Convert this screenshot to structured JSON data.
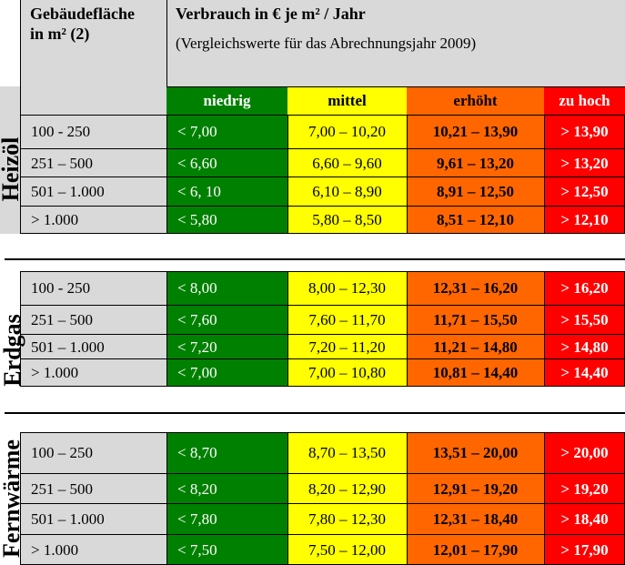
{
  "header": {
    "area_line1": "Gebäudefläche",
    "area_line2": "in m² (2)",
    "consumption_title": "Verbrauch in € je m² / Jahr",
    "consumption_subtitle": "(Vergleichswerte für das Abrechnungsjahr 2009)"
  },
  "categories": [
    "niedrig",
    "mittel",
    "erhöht",
    "zu hoch"
  ],
  "colors": {
    "niedrig": "#008000",
    "mittel": "#ffff00",
    "erhoeht": "#ff6600",
    "zu_hoch": "#ff0000",
    "label_bg": "#d9d9d9"
  },
  "sections": [
    {
      "label": "Heizöl",
      "rows": [
        [
          "100 - 250",
          "< 7,00",
          "7,00 – 10,20",
          "10,21 – 13,90",
          "> 13,90"
        ],
        [
          "251 – 500",
          "< 6,60",
          "6,60 – 9,60",
          "9,61 – 13,20",
          "> 13,20"
        ],
        [
          "501 – 1.000",
          "< 6, 10",
          "6,10 – 8,90",
          "8,91 – 12,50",
          "> 12,50"
        ],
        [
          "> 1.000",
          "< 5,80",
          "5,80 – 8,50",
          "8,51 – 12,10",
          "> 12,10"
        ]
      ]
    },
    {
      "label": "Erdgas",
      "rows": [
        [
          "100 - 250",
          "< 8,00",
          "8,00 – 12,30",
          "12,31 – 16,20",
          "> 16,20"
        ],
        [
          "251 – 500",
          "< 7,60",
          "7,60 – 11,70",
          "11,71 – 15,50",
          "> 15,50"
        ],
        [
          "501 – 1.000",
          "< 7,20",
          "7,20 – 11,20",
          "11,21 – 14,80",
          "> 14,80"
        ],
        [
          "> 1.000",
          "< 7,00",
          "7,00 – 10,80",
          "10,81 – 14,40",
          "> 14,40"
        ]
      ]
    },
    {
      "label": "Fernwärme",
      "rows": [
        [
          "100 – 250",
          "< 8,70",
          "8,70 – 13,50",
          "13,51 – 20,00",
          "> 20,00"
        ],
        [
          "251 – 500",
          "< 8,20",
          "8,20 – 12,90",
          "12,91 – 19,20",
          "> 19,20"
        ],
        [
          "501 – 1.000",
          "< 7,80",
          "7,80 – 12,30",
          "12,31 – 18,40",
          "> 18,40"
        ],
        [
          "> 1.000",
          "< 7,50",
          "7,50 – 12,00",
          "12,01 – 17,90",
          "> 17,90"
        ]
      ]
    }
  ]
}
